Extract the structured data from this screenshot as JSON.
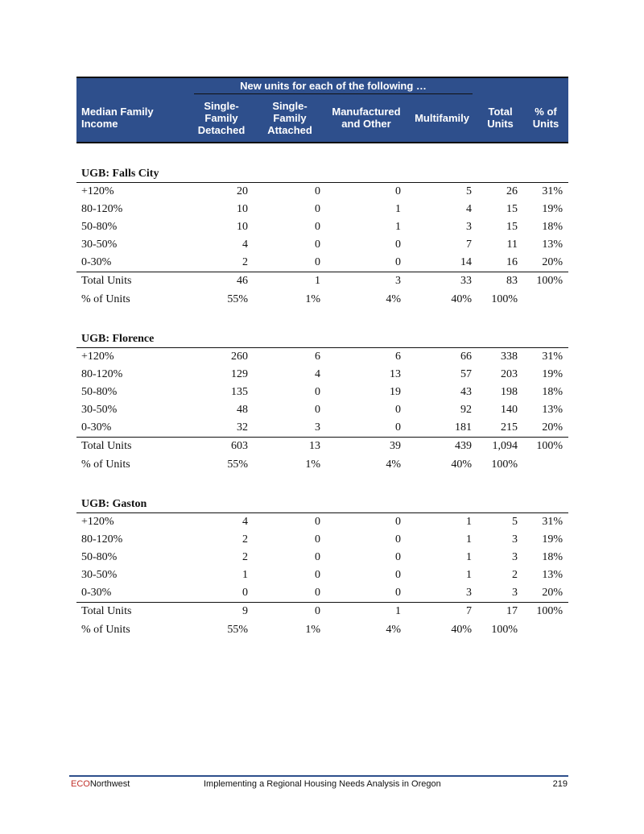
{
  "table": {
    "group_header": "New units for each of the following …",
    "columns": [
      "Median Family Income",
      "Single-Family Detached",
      "Single-Family Attached",
      "Manufactured and Other",
      "Multifamily",
      "Total Units",
      "% of Units"
    ],
    "column_lines": [
      [
        "Median Family",
        "Income"
      ],
      [
        "Single-",
        "Family",
        "Detached"
      ],
      [
        "Single-",
        "Family",
        "Attached"
      ],
      [
        "Manufactured",
        "and Other"
      ],
      [
        "Multifamily"
      ],
      [
        "Total",
        "Units"
      ],
      [
        "% of",
        "Units"
      ]
    ],
    "sections": [
      {
        "title": "UGB: Falls City",
        "rows": [
          [
            "+120%",
            "20",
            "0",
            "0",
            "5",
            "26",
            "31%"
          ],
          [
            "80-120%",
            "10",
            "0",
            "1",
            "4",
            "15",
            "19%"
          ],
          [
            "50-80%",
            "10",
            "0",
            "1",
            "3",
            "15",
            "18%"
          ],
          [
            "30-50%",
            "4",
            "0",
            "0",
            "7",
            "11",
            "13%"
          ],
          [
            "0-30%",
            "2",
            "0",
            "0",
            "14",
            "16",
            "20%"
          ]
        ],
        "total": [
          "Total Units",
          "46",
          "1",
          "3",
          "33",
          "83",
          "100%"
        ],
        "pct": [
          "% of Units",
          "55%",
          "1%",
          "4%",
          "40%",
          "100%",
          ""
        ]
      },
      {
        "title": "UGB: Florence",
        "rows": [
          [
            "+120%",
            "260",
            "6",
            "6",
            "66",
            "338",
            "31%"
          ],
          [
            "80-120%",
            "129",
            "4",
            "13",
            "57",
            "203",
            "19%"
          ],
          [
            "50-80%",
            "135",
            "0",
            "19",
            "43",
            "198",
            "18%"
          ],
          [
            "30-50%",
            "48",
            "0",
            "0",
            "92",
            "140",
            "13%"
          ],
          [
            "0-30%",
            "32",
            "3",
            "0",
            "181",
            "215",
            "20%"
          ]
        ],
        "total": [
          "Total Units",
          "603",
          "13",
          "39",
          "439",
          "1,094",
          "100%"
        ],
        "pct": [
          "% of Units",
          "55%",
          "1%",
          "4%",
          "40%",
          "100%",
          ""
        ]
      },
      {
        "title": "UGB: Gaston",
        "rows": [
          [
            "+120%",
            "4",
            "0",
            "0",
            "1",
            "5",
            "31%"
          ],
          [
            "80-120%",
            "2",
            "0",
            "0",
            "1",
            "3",
            "19%"
          ],
          [
            "50-80%",
            "2",
            "0",
            "0",
            "1",
            "3",
            "18%"
          ],
          [
            "30-50%",
            "1",
            "0",
            "0",
            "1",
            "2",
            "13%"
          ],
          [
            "0-30%",
            "0",
            "0",
            "0",
            "3",
            "3",
            "20%"
          ]
        ],
        "total": [
          "Total Units",
          "9",
          "0",
          "1",
          "7",
          "17",
          "100%"
        ],
        "pct": [
          "% of Units",
          "55%",
          "1%",
          "4%",
          "40%",
          "100%",
          ""
        ]
      }
    ]
  },
  "footer": {
    "brand_red": "ECO",
    "brand_rest": "Northwest",
    "title": "Implementing a Regional Housing Needs Analysis in Oregon",
    "page": "219"
  },
  "colors": {
    "header_bg": "#2e4f8c",
    "brand_red": "#c0302a"
  }
}
